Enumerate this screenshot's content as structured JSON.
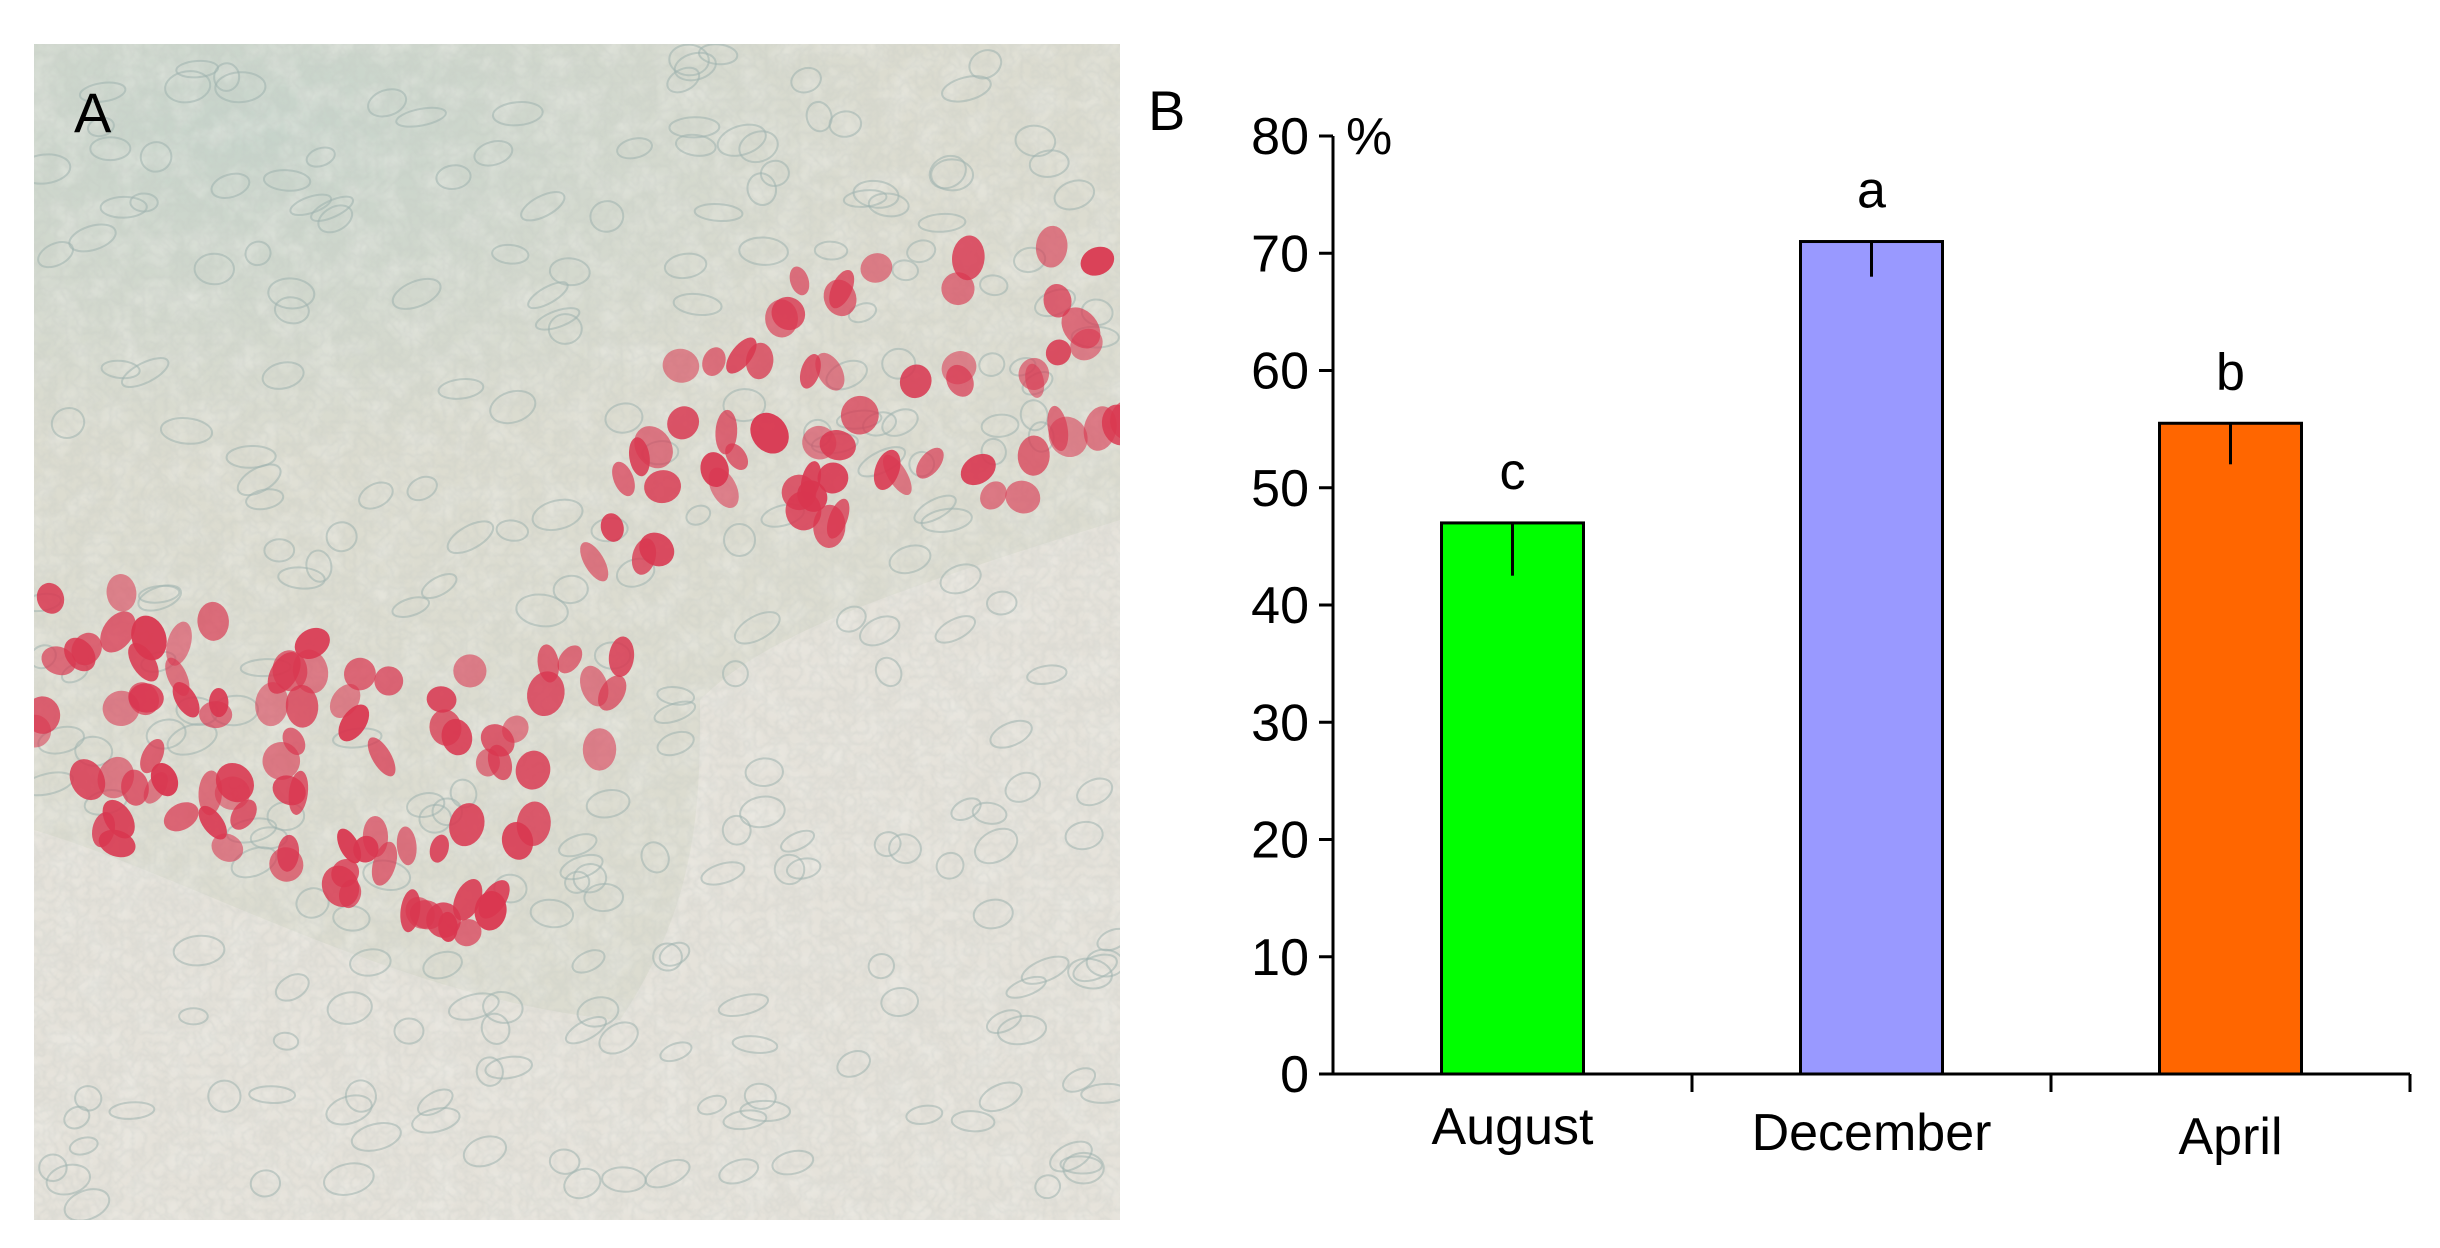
{
  "panels": {
    "a_letter": "A",
    "b_letter": "B"
  },
  "micrograph": {
    "stain_positive_color": "#d9364f",
    "background_color": "#dcdcd0",
    "counterstain_color": "#a8c4c0"
  },
  "chart_data": {
    "type": "bar",
    "title": "",
    "xlabel": "",
    "ylabel": "%",
    "ylim": [
      0,
      80
    ],
    "yticks": [
      0,
      10,
      20,
      30,
      40,
      50,
      60,
      70,
      80
    ],
    "categories": [
      "August",
      "December",
      "April"
    ],
    "values": [
      47,
      71,
      55.5
    ],
    "errors": [
      4.5,
      3,
      3.5
    ],
    "significance": [
      "c",
      "a",
      "b"
    ],
    "colors": [
      "#00ff00",
      "#9999ff",
      "#ff6600"
    ],
    "grid": false,
    "legend": "none"
  }
}
